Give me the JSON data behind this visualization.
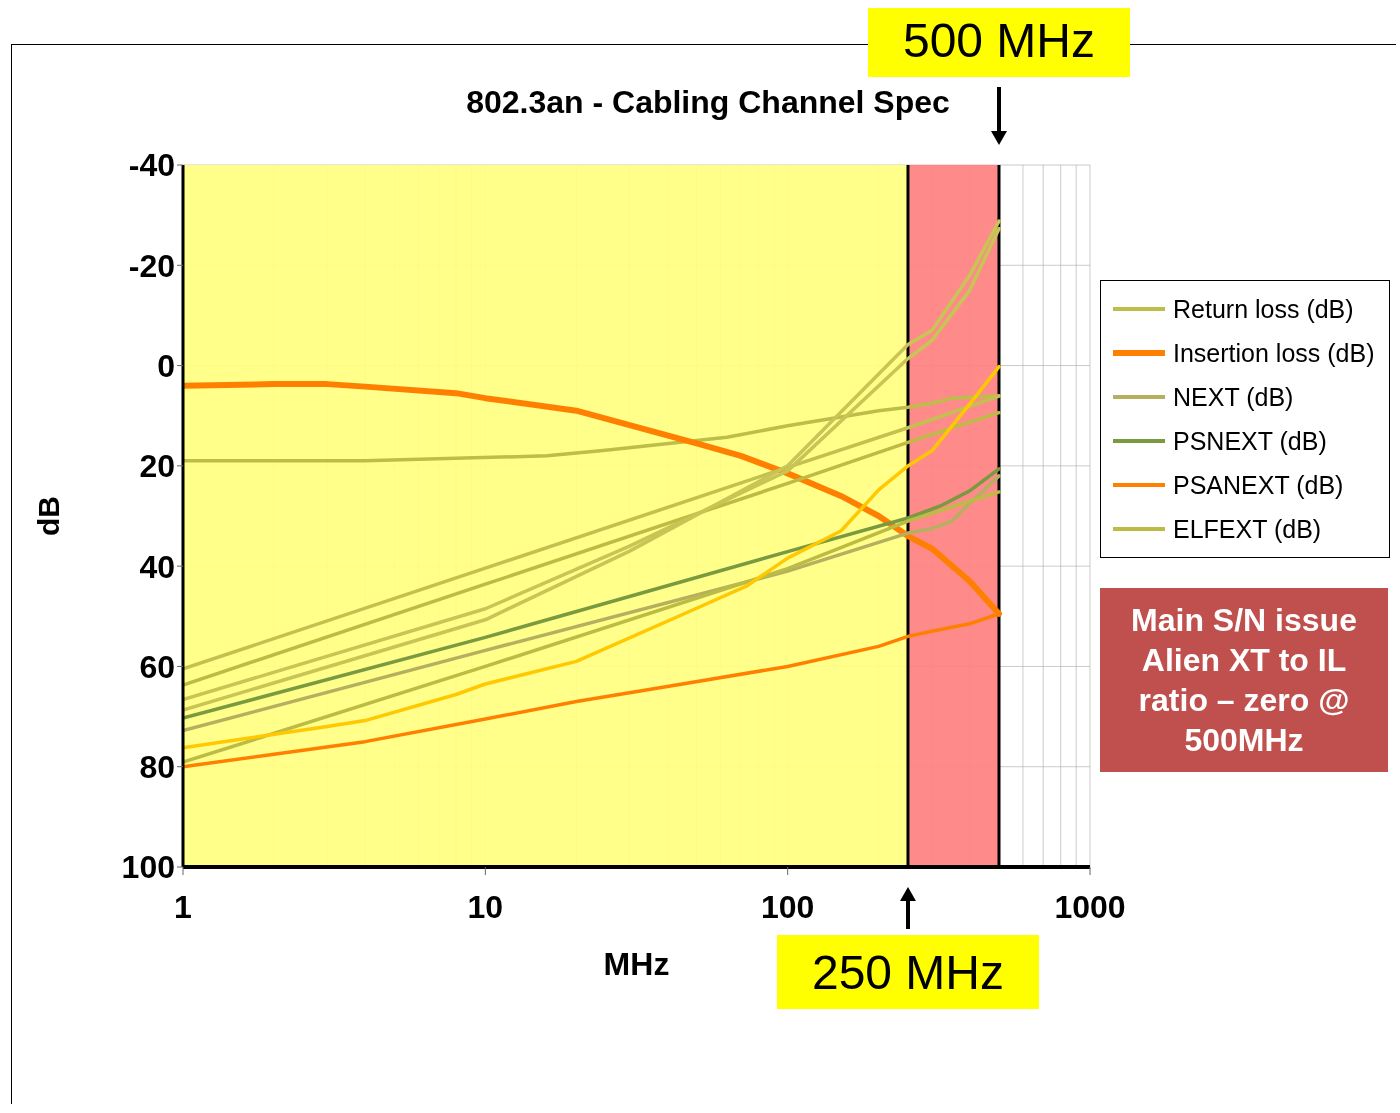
{
  "chart_data": {
    "type": "line",
    "title": "802.3an - Cabling Channel Spec",
    "xlabel": "MHz",
    "ylabel": "dB",
    "log": "x",
    "grid": true,
    "legend": "right",
    "line_style": "solid",
    "marker": "none",
    "xlim": [
      1,
      1000
    ],
    "xticks": [
      1,
      10,
      100,
      1000
    ],
    "ylim": [
      100,
      -40
    ],
    "yticks": [
      -40,
      -20,
      0,
      20,
      40,
      60,
      80,
      100
    ],
    "bands": [
      {
        "axis": "x",
        "from": 1,
        "to": 250,
        "color": "#ffff80"
      },
      {
        "axis": "x",
        "from": 250,
        "to": 500,
        "color": "#ff8080"
      }
    ],
    "ref_lines": [
      {
        "axis": "x",
        "value": 250,
        "label": "250 MHz",
        "color": "#000000"
      },
      {
        "axis": "x",
        "value": 500,
        "label": "500 MHz",
        "color": "#000000"
      }
    ],
    "annotations": [
      "Main S/N issue Alien XT to IL ratio – zero @ 500MHz"
    ],
    "series": [
      {
        "name": "Return loss (dB)",
        "color": "#bdbd4a",
        "x": [
          1,
          4,
          16,
          25,
          63,
          100,
          200,
          250,
          300,
          350,
          500
        ],
        "values": [
          19,
          19,
          18,
          16.9,
          14.3,
          12,
          9,
          8.3,
          7.5,
          6.5,
          6
        ]
      },
      {
        "name": "Insertion loss (dB)",
        "color": "#ff8000",
        "x": [
          1,
          2,
          3,
          4,
          8,
          10,
          20,
          25,
          50,
          70,
          100,
          150,
          200,
          250,
          300,
          400,
          500
        ],
        "values": [
          4,
          3.7,
          3.7,
          4.2,
          5.5,
          6.5,
          9,
          10.6,
          15.5,
          18,
          21.5,
          26,
          30,
          34,
          36.5,
          43,
          49.5
        ]
      },
      {
        "name": "NEXT (dB)",
        "color": "#b5b060",
        "x": [
          1,
          10,
          100,
          250,
          300,
          350,
          400,
          500
        ],
        "values": [
          72.8,
          56.8,
          41,
          33.4,
          32.5,
          31,
          27.5,
          22
        ]
      },
      {
        "name": "PSNEXT (dB)",
        "color": "#7a9a40",
        "x": [
          1,
          10,
          100,
          250,
          320,
          400,
          500
        ],
        "values": [
          70.3,
          54.2,
          37.1,
          30.4,
          28,
          25,
          20.6
        ]
      },
      {
        "name": "PSANEXT (dB)",
        "color": "#ff8000",
        "x": [
          1,
          2,
          4,
          10,
          20,
          40,
          100,
          200,
          250,
          300,
          400,
          500
        ],
        "values": [
          80,
          77.5,
          75,
          70.5,
          67,
          64,
          60,
          56,
          54,
          53,
          51.5,
          49.5
        ]
      },
      {
        "name": "ELFEXT (dB)",
        "color": "#bcbc45",
        "x": [
          1,
          10,
          100,
          250,
          500
        ],
        "values": [
          63.7,
          43.6,
          23.5,
          15.3,
          9.4
        ]
      },
      {
        "color": "#c4c050",
        "x": [
          1,
          10,
          100,
          250,
          500
        ],
        "values": [
          60.5,
          40.4,
          20.3,
          12.4,
          6.1
        ]
      },
      {
        "color": "#c8c455",
        "x": [
          1,
          10,
          30,
          100,
          250,
          300,
          400,
          500
        ],
        "values": [
          66.6,
          48.5,
          36,
          21,
          -1.4,
          -5,
          -15,
          -27.3
        ]
      },
      {
        "color": "#c8c455",
        "x": [
          1,
          10,
          30,
          100,
          250,
          300,
          400,
          500
        ],
        "values": [
          68.7,
          50.7,
          37,
          20,
          -4.2,
          -7,
          -18,
          -28.8
        ]
      },
      {
        "color": "#bcbc45",
        "x": [
          1,
          10,
          100,
          250,
          500
        ],
        "values": [
          79.1,
          60,
          40.5,
          31,
          25.2
        ]
      },
      {
        "color": "#ffc800",
        "x": [
          1,
          3,
          4,
          8,
          10,
          20,
          50,
          73,
          100,
          150,
          200,
          250,
          300,
          400,
          500
        ],
        "values": [
          76.2,
          72,
          70.8,
          65.6,
          63.5,
          59,
          48.4,
          44,
          38.4,
          33,
          24.8,
          20,
          17,
          7.7,
          0.2
        ]
      }
    ]
  }
}
